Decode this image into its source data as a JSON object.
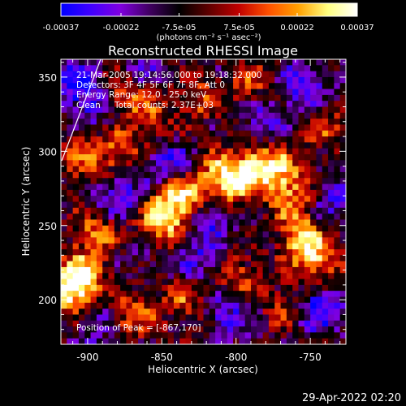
{
  "chart_data": {
    "type": "heatmap",
    "title": "Reconstructed RHESSI Image",
    "xlabel": "Heliocentric X (arcsec)",
    "ylabel": "Heliocentric Y (arcsec)",
    "xlim": [
      -918,
      -726
    ],
    "ylim": [
      170,
      362
    ],
    "xticks": [
      -900,
      -850,
      -800,
      -750
    ],
    "yticks": [
      200,
      250,
      300,
      350
    ],
    "colorbar": {
      "range": [
        -0.00037,
        0.00037
      ],
      "tick_values": [
        -0.00037,
        -0.00022,
        -7.5e-05,
        7.5e-05,
        0.00022,
        0.00037
      ],
      "tick_labels": [
        "-0.00037",
        "-0.00022",
        "-7.5e-05",
        "7.5e-05",
        "0.00022",
        "0.00037"
      ],
      "units_label": "(photons cm⁻² s⁻¹ asec⁻²)",
      "colormap": [
        "#0000ff",
        "#4000ff",
        "#8000e0",
        "#400060",
        "#000000",
        "#600000",
        "#c00000",
        "#ff5000",
        "#ffa000",
        "#ffff80",
        "#ffffff"
      ]
    },
    "annotations": {
      "time_range": "21-Mar-2005 19:14:56.000 to 19:18:32.000",
      "detectors": "Detectors: 3F 4F 5F 6F 7F 8F, Att 0",
      "energy_range": "Energy Range: 12.0 - 25.0 keV",
      "method": "Clean",
      "total_counts": "Total counts: 2.37E+03",
      "peak": "Position of Peak = [-867,170]"
    },
    "peak_position": [
      -867,
      170
    ],
    "pixel_size_arcsec": 4,
    "features": [
      {
        "x": -845,
        "y": 260,
        "value": 0.00028
      },
      {
        "x": -835,
        "y": 270,
        "value": 0.0003
      },
      {
        "x": -855,
        "y": 245,
        "value": 0.00025
      },
      {
        "x": -810,
        "y": 285,
        "value": 0.00027
      },
      {
        "x": -800,
        "y": 278,
        "value": 0.00024
      },
      {
        "x": -785,
        "y": 292,
        "value": 0.00026
      },
      {
        "x": -770,
        "y": 285,
        "value": 0.00028
      },
      {
        "x": -760,
        "y": 265,
        "value": 0.00022
      },
      {
        "x": -755,
        "y": 240,
        "value": 0.0003
      },
      {
        "x": -745,
        "y": 225,
        "value": 0.00026
      },
      {
        "x": -905,
        "y": 215,
        "value": 0.00035
      },
      {
        "x": -912,
        "y": 205,
        "value": 0.00033
      },
      {
        "x": -895,
        "y": 245,
        "value": 0.00024
      },
      {
        "x": -880,
        "y": 300,
        "value": 0.00022
      },
      {
        "x": -880,
        "y": 340,
        "value": 0.00025
      },
      {
        "x": -860,
        "y": 325,
        "value": 0.0002
      },
      {
        "x": -905,
        "y": 295,
        "value": 0.00021
      },
      {
        "x": -825,
        "y": 335,
        "value": 0.00018
      },
      {
        "x": -790,
        "y": 345,
        "value": 0.00016
      },
      {
        "x": -870,
        "y": 190,
        "value": 0.00023
      },
      {
        "x": -835,
        "y": 200,
        "value": 0.00019
      },
      {
        "x": -800,
        "y": 215,
        "value": 0.00021
      },
      {
        "x": -765,
        "y": 195,
        "value": 0.00018
      },
      {
        "x": -740,
        "y": 315,
        "value": 0.00017
      },
      {
        "x": -845,
        "y": 290,
        "value": -0.0002
      },
      {
        "x": -880,
        "y": 270,
        "value": -0.00022
      },
      {
        "x": -890,
        "y": 330,
        "value": -0.00018
      },
      {
        "x": -905,
        "y": 345,
        "value": -0.0003
      },
      {
        "x": -820,
        "y": 255,
        "value": -0.0002
      },
      {
        "x": -825,
        "y": 225,
        "value": -0.00018
      },
      {
        "x": -780,
        "y": 320,
        "value": -0.00019
      },
      {
        "x": -755,
        "y": 345,
        "value": -0.00022
      },
      {
        "x": -735,
        "y": 265,
        "value": -0.00018
      },
      {
        "x": -745,
        "y": 195,
        "value": -0.0003
      },
      {
        "x": -895,
        "y": 185,
        "value": -0.00015
      },
      {
        "x": -860,
        "y": 235,
        "value": -0.00016
      },
      {
        "x": -805,
        "y": 190,
        "value": -0.0002
      },
      {
        "x": -865,
        "y": 355,
        "value": -0.00012
      }
    ]
  },
  "footer": {
    "date": "29-Apr-2022 02:20"
  }
}
